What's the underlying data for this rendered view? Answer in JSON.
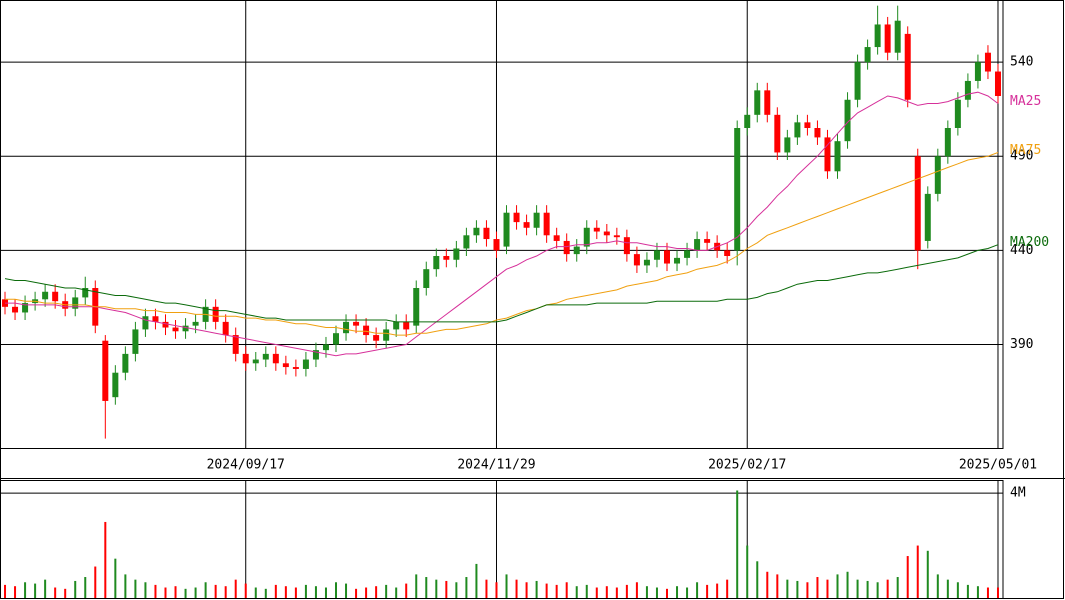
{
  "chart_data": {
    "type": "candlestick",
    "categories": [
      null,
      null,
      null,
      null,
      null,
      null,
      null,
      null,
      null,
      null,
      null,
      null,
      null,
      null,
      null,
      null,
      null,
      null,
      null,
      null,
      null,
      null,
      null,
      null,
      "2024/09/17",
      null,
      null,
      null,
      null,
      null,
      null,
      null,
      null,
      null,
      null,
      null,
      null,
      null,
      null,
      null,
      null,
      null,
      null,
      null,
      null,
      null,
      null,
      null,
      null,
      "2024/11/29",
      null,
      null,
      null,
      null,
      null,
      null,
      null,
      null,
      null,
      null,
      null,
      null,
      null,
      null,
      null,
      null,
      null,
      null,
      null,
      null,
      null,
      null,
      null,
      null,
      "2025/02/17",
      null,
      null,
      null,
      null,
      null,
      null,
      null,
      null,
      null,
      null,
      null,
      null,
      null,
      null,
      null,
      null,
      null,
      null,
      null,
      null,
      null,
      null,
      null,
      null,
      "2025/05/01"
    ],
    "open": [
      414,
      410,
      407,
      412,
      414,
      418,
      413,
      409,
      415,
      420,
      392,
      362,
      375,
      385,
      398,
      405,
      402,
      399,
      397,
      400,
      402,
      410,
      402,
      395,
      385,
      380,
      382,
      385,
      380,
      378,
      377,
      382,
      387,
      390,
      396,
      402,
      400,
      395,
      392,
      398,
      402,
      400,
      420,
      430,
      437,
      435,
      441,
      448,
      452,
      446,
      442,
      460,
      455,
      452,
      460,
      448,
      445,
      438,
      442,
      452,
      450,
      448,
      447,
      438,
      432,
      435,
      440,
      433,
      436,
      440,
      446,
      444,
      440,
      440,
      505,
      512,
      525,
      512,
      492,
      500,
      508,
      505,
      500,
      482,
      498,
      520,
      540,
      548,
      560,
      545,
      555,
      490,
      445,
      470,
      490,
      505,
      520,
      530,
      545,
      535
    ],
    "high": [
      418,
      414,
      416,
      418,
      422,
      422,
      417,
      419,
      426,
      424,
      395,
      379,
      389,
      402,
      409,
      409,
      406,
      403,
      404,
      406,
      414,
      414,
      406,
      399,
      389,
      386,
      389,
      389,
      384,
      382,
      386,
      391,
      394,
      400,
      406,
      406,
      404,
      399,
      402,
      406,
      406,
      424,
      434,
      441,
      441,
      445,
      452,
      456,
      456,
      450,
      464,
      464,
      459,
      464,
      464,
      452,
      449,
      446,
      456,
      456,
      454,
      452,
      451,
      442,
      439,
      444,
      444,
      440,
      444,
      450,
      450,
      448,
      444,
      509,
      516,
      529,
      529,
      516,
      504,
      512,
      512,
      509,
      504,
      502,
      524,
      544,
      552,
      570,
      564,
      570,
      559,
      494,
      474,
      494,
      509,
      524,
      534,
      544,
      549,
      539
    ],
    "low": [
      406,
      403,
      403,
      408,
      410,
      409,
      405,
      405,
      411,
      396,
      340,
      358,
      371,
      381,
      394,
      398,
      395,
      393,
      393,
      396,
      398,
      398,
      391,
      381,
      376,
      376,
      378,
      376,
      374,
      373,
      373,
      378,
      383,
      386,
      392,
      396,
      391,
      388,
      388,
      394,
      394,
      396,
      416,
      426,
      431,
      431,
      437,
      444,
      442,
      436,
      438,
      451,
      448,
      448,
      444,
      441,
      434,
      434,
      438,
      446,
      444,
      443,
      434,
      428,
      428,
      431,
      429,
      429,
      432,
      436,
      440,
      436,
      433,
      432,
      501,
      508,
      508,
      488,
      488,
      496,
      501,
      496,
      478,
      478,
      494,
      516,
      536,
      544,
      541,
      541,
      516,
      430,
      441,
      466,
      486,
      501,
      516,
      526,
      531,
      518
    ],
    "close": [
      410,
      407,
      412,
      414,
      418,
      413,
      409,
      415,
      420,
      400,
      360,
      375,
      385,
      398,
      405,
      402,
      399,
      397,
      400,
      402,
      410,
      402,
      395,
      385,
      380,
      382,
      385,
      380,
      378,
      377,
      382,
      387,
      390,
      396,
      402,
      400,
      395,
      392,
      398,
      402,
      398,
      420,
      430,
      437,
      435,
      441,
      448,
      452,
      446,
      440,
      460,
      455,
      452,
      460,
      448,
      445,
      438,
      442,
      452,
      450,
      448,
      447,
      438,
      432,
      435,
      440,
      433,
      436,
      440,
      446,
      444,
      440,
      437,
      505,
      512,
      525,
      512,
      492,
      500,
      508,
      505,
      500,
      482,
      498,
      520,
      540,
      548,
      560,
      545,
      562,
      520,
      440,
      470,
      490,
      505,
      520,
      530,
      540,
      535,
      522
    ],
    "up_color": "#1f8a1f",
    "down_color": "#ff0000",
    "ylim": [
      335,
      573
    ],
    "yticks": [
      390,
      440,
      490,
      540
    ],
    "grid": true,
    "series": [
      {
        "name": "MA25",
        "color": "#d6309a",
        "values": [
          412,
          412,
          411,
          411,
          411,
          411,
          410,
          410,
          410,
          410,
          409,
          408,
          407,
          405,
          403,
          402,
          401,
          400,
          399,
          398,
          397,
          396,
          395,
          394,
          393,
          392,
          391,
          390,
          389,
          388,
          387,
          386,
          385,
          384,
          385,
          385,
          386,
          387,
          388,
          389,
          390,
          394,
          398,
          402,
          406,
          410,
          414,
          418,
          422,
          426,
          430,
          432,
          435,
          437,
          440,
          442,
          442,
          443,
          443,
          444,
          444,
          445,
          444,
          444,
          443,
          442,
          442,
          441,
          441,
          440,
          440,
          442,
          444,
          447,
          452,
          458,
          463,
          469,
          474,
          480,
          485,
          490,
          496,
          502,
          508,
          513,
          516,
          519,
          522,
          521,
          519,
          517,
          518,
          518,
          519,
          521,
          523,
          524,
          522,
          518
        ]
      },
      {
        "name": "MA75",
        "color": "#f0a010",
        "values": [
          414,
          414,
          413,
          413,
          412,
          412,
          411,
          411,
          411,
          410,
          410,
          409,
          409,
          409,
          408,
          408,
          407,
          407,
          407,
          406,
          406,
          405,
          405,
          405,
          404,
          404,
          403,
          403,
          402,
          401,
          401,
          400,
          399,
          399,
          398,
          397,
          397,
          396,
          396,
          395,
          395,
          396,
          396,
          397,
          398,
          398,
          399,
          400,
          401,
          403,
          404,
          406,
          408,
          409,
          411,
          412,
          414,
          415,
          416,
          417,
          418,
          419,
          421,
          422,
          423,
          424,
          426,
          427,
          428,
          430,
          431,
          432,
          434,
          437,
          441,
          444,
          448,
          450,
          452,
          454,
          456,
          458,
          460,
          462,
          464,
          466,
          468,
          470,
          472,
          474,
          476,
          478,
          480,
          482,
          484,
          486,
          488,
          489,
          490,
          492
        ]
      },
      {
        "name": "MA200",
        "color": "#0b6b0b",
        "values": [
          425,
          424,
          424,
          423,
          422,
          421,
          420,
          420,
          419,
          418,
          417,
          416,
          416,
          415,
          414,
          413,
          412,
          412,
          411,
          410,
          409,
          408,
          408,
          407,
          406,
          405,
          404,
          404,
          403,
          403,
          403,
          403,
          403,
          403,
          403,
          403,
          403,
          403,
          403,
          402,
          402,
          402,
          402,
          402,
          402,
          402,
          402,
          402,
          402,
          402,
          403,
          405,
          407,
          409,
          411,
          411,
          411,
          411,
          411,
          412,
          412,
          412,
          412,
          412,
          412,
          413,
          413,
          413,
          413,
          413,
          413,
          413,
          414,
          414,
          414,
          415,
          417,
          418,
          420,
          422,
          423,
          424,
          424,
          425,
          426,
          427,
          428,
          428,
          429,
          430,
          431,
          432,
          433,
          434,
          435,
          436,
          438,
          440,
          441,
          443
        ]
      }
    ],
    "volume": [
      500000,
      450000,
      600000,
      550000,
      700000,
      400000,
      350000,
      650000,
      800000,
      1200000,
      2900000,
      1500000,
      900000,
      700000,
      600000,
      500000,
      400000,
      450000,
      350000,
      400000,
      600000,
      500000,
      450000,
      700000,
      550000,
      400000,
      350000,
      500000,
      450000,
      400000,
      500000,
      450000,
      400000,
      600000,
      550000,
      350000,
      400000,
      450000,
      500000,
      400000,
      550000,
      900000,
      800000,
      700000,
      650000,
      600000,
      800000,
      1300000,
      700000,
      600000,
      900000,
      700000,
      600000,
      650000,
      550000,
      500000,
      600000,
      450000,
      500000,
      400000,
      450000,
      400000,
      500000,
      600000,
      450000,
      400000,
      350000,
      450000,
      400000,
      600000,
      500000,
      550000,
      700000,
      4100000,
      2000000,
      1400000,
      1000000,
      900000,
      700000,
      650000,
      600000,
      800000,
      700000,
      900000,
      1000000,
      700000,
      650000,
      600000,
      700000,
      800000,
      1600000,
      2000000,
      1800000,
      900000,
      700000,
      600000,
      500000,
      450000,
      400000,
      400000
    ],
    "vlim": [
      0,
      4500000
    ],
    "vticks": [
      {
        "value": 4000000,
        "label": "4M"
      }
    ]
  }
}
